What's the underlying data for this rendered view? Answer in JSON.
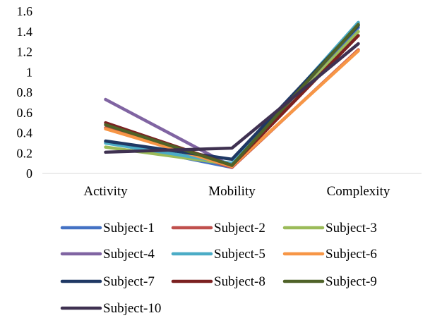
{
  "chart_data": {
    "type": "line",
    "title": "",
    "xlabel": "",
    "ylabel": "",
    "categories": [
      "Activity",
      "Mobility",
      "Complexity"
    ],
    "ylim": [
      0,
      1.6
    ],
    "yticks": [
      0,
      0.2,
      0.4,
      0.6,
      0.8,
      1,
      1.2,
      1.4,
      1.6
    ],
    "y_tick_labels": [
      "0",
      "0.2",
      "0.4",
      "0.6",
      "0.8",
      "1",
      "1.2",
      "1.4",
      "1.6"
    ],
    "grid": false,
    "legend_position": "bottom",
    "series": [
      {
        "name": "Subject-1",
        "color": "#4472C4",
        "values": [
          0.31,
          0.06,
          1.44
        ]
      },
      {
        "name": "Subject-2",
        "color": "#C0504D",
        "values": [
          0.45,
          0.06,
          1.22
        ]
      },
      {
        "name": "Subject-3",
        "color": "#9BBB59",
        "values": [
          0.26,
          0.09,
          1.4
        ]
      },
      {
        "name": "Subject-4",
        "color": "#8064A2",
        "values": [
          0.73,
          0.07,
          1.47
        ]
      },
      {
        "name": "Subject-5",
        "color": "#4BACC6",
        "values": [
          0.3,
          0.1,
          1.49
        ]
      },
      {
        "name": "Subject-6",
        "color": "#F79646",
        "values": [
          0.44,
          0.07,
          1.21
        ]
      },
      {
        "name": "Subject-7",
        "color": "#1F3864",
        "values": [
          0.32,
          0.14,
          1.46
        ]
      },
      {
        "name": "Subject-8",
        "color": "#7B2020",
        "values": [
          0.5,
          0.08,
          1.36
        ]
      },
      {
        "name": "Subject-9",
        "color": "#4F6228",
        "values": [
          0.48,
          0.08,
          1.47
        ]
      },
      {
        "name": "Subject-10",
        "color": "#3F3151",
        "values": [
          0.21,
          0.25,
          1.28
        ]
      }
    ]
  }
}
